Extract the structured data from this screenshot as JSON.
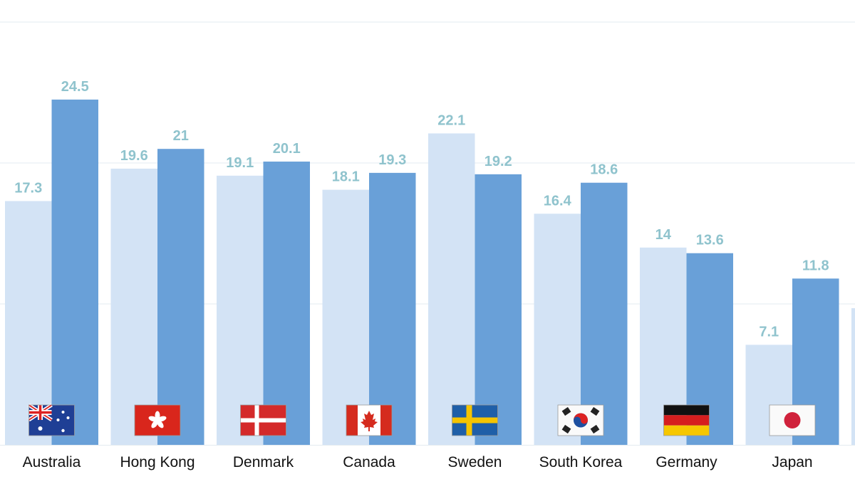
{
  "chart_data": {
    "type": "bar",
    "categories": [
      "Australia",
      "Hong Kong",
      "Denmark",
      "Canada",
      "Sweden",
      "South Korea",
      "Germany",
      "Japan",
      ""
    ],
    "series": [
      {
        "values": [
          17.3,
          19.6,
          19.1,
          18.1,
          22.1,
          16.4,
          14,
          7.1,
          9.7
        ]
      },
      {
        "values": [
          24.5,
          21,
          20.1,
          19.3,
          19.2,
          18.6,
          13.6,
          11.8,
          null
        ]
      }
    ],
    "value_labels": [
      [
        "17.3",
        "19.6",
        "19.1",
        "18.1",
        "22.1",
        "16.4",
        "14",
        "7.1",
        ""
      ],
      [
        "24.5",
        "21",
        "20.1",
        "19.3",
        "19.2",
        "18.6",
        "13.6",
        "11.8",
        ""
      ]
    ],
    "flags": [
      "australia-flag",
      "hong-kong-flag",
      "denmark-flag",
      "canada-flag",
      "sweden-flag",
      "south-korea-flag",
      "germany-flag",
      "japan-flag",
      ""
    ],
    "ylim": [
      0,
      30
    ],
    "gridlines": [
      10,
      20,
      30
    ],
    "grid": true,
    "y_axis_labels_shown": false,
    "legend": "none",
    "colors": {
      "series_0": "#d3e3f5",
      "series_1": "#69a0d8",
      "value_label": "#8fc3cd",
      "grid": "#e3ebf0",
      "category_label": "#111111"
    }
  }
}
